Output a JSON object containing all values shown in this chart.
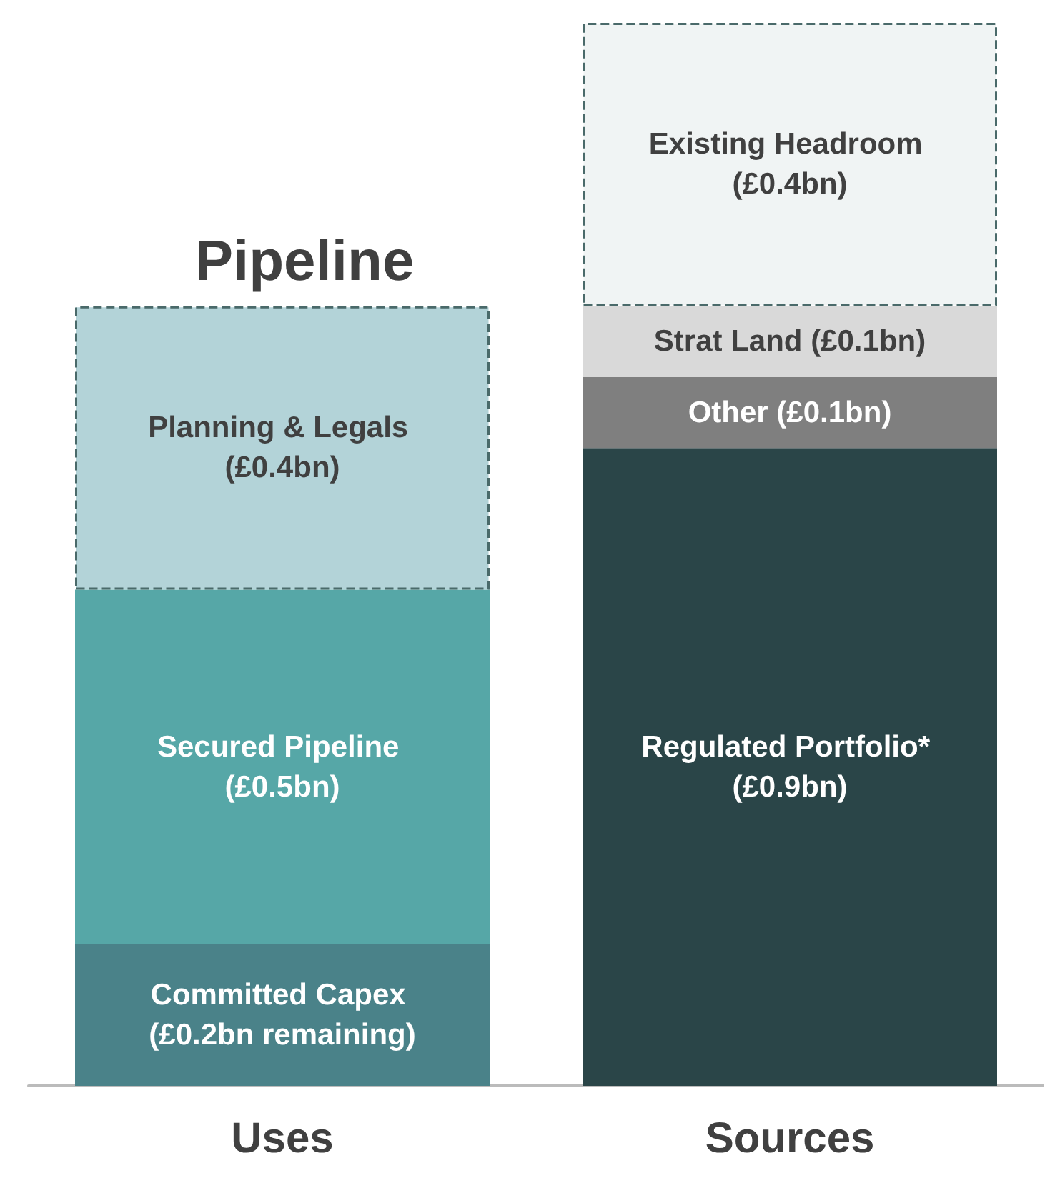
{
  "chart_data": {
    "type": "bar",
    "title": "Pipeline",
    "categories": [
      "Uses",
      "Sources"
    ],
    "stacked": true,
    "series": [
      {
        "color": "#4a8289",
        "values": [
          0.2,
          null
        ],
        "value_labels": [
          "Committed Capex (£0.2bn remaining)",
          null
        ]
      },
      {
        "color": "#56a7a7",
        "values": [
          0.5,
          null
        ],
        "value_labels": [
          "Secured Pipeline (£0.5bn)",
          null
        ]
      },
      {
        "color": "#b3d3d8",
        "values": [
          0.4,
          null
        ],
        "line_style": "dashed",
        "value_labels": [
          "Planning & Legals (£0.4bn)",
          null
        ]
      },
      {
        "color": "#2a4548",
        "values": [
          null,
          0.9
        ],
        "value_labels": [
          null,
          "Regulated Portfolio* (£0.9bn)"
        ]
      },
      {
        "color": "#7f7f7f",
        "values": [
          null,
          0.1
        ],
        "value_labels": [
          null,
          "Other (£0.1bn)"
        ]
      },
      {
        "color": "#d9d9d9",
        "values": [
          null,
          0.1
        ],
        "value_labels": [
          null,
          "Strat Land (£0.1bn)"
        ]
      },
      {
        "color": "#f0f4f4",
        "values": [
          null,
          0.4
        ],
        "line_style": "dashed",
        "value_labels": [
          null,
          "Existing Headroom (£0.4bn)"
        ]
      }
    ]
  }
}
